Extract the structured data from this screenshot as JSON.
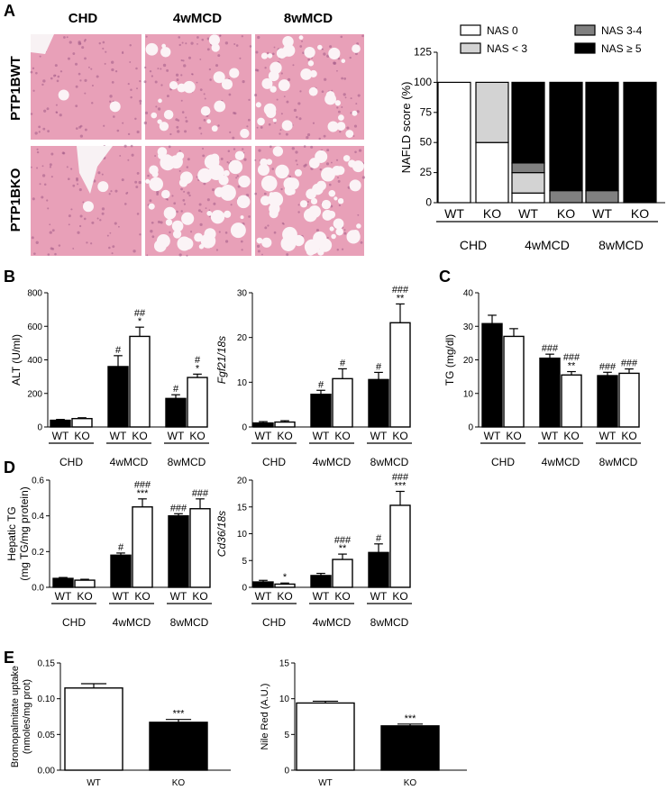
{
  "panel_letters": {
    "a": "A",
    "b": "B",
    "c": "C",
    "d": "D",
    "e": "E"
  },
  "histology": {
    "columns": [
      "CHD",
      "4wMCD",
      "8wMCD"
    ],
    "rows": [
      "PTP1BWT",
      "PTP1BKO"
    ]
  },
  "colors": {
    "wt": "#000000",
    "ko": "#ffffff",
    "nas_lt3": "#d3d3d3",
    "nas_34": "#808080",
    "tissue": "#e8a0b8"
  },
  "chart_data": [
    {
      "id": "nafld",
      "type": "bar",
      "stacked": true,
      "ylabel": "NAFLD score (%)",
      "ylim": [
        0,
        125
      ],
      "yticks": [
        0,
        25,
        50,
        75,
        100,
        125
      ],
      "categories": [
        "WT",
        "KO",
        "WT",
        "KO",
        "WT",
        "KO"
      ],
      "groups": [
        "CHD",
        "4wMCD",
        "8wMCD"
      ],
      "series": [
        {
          "name": "NAS 0",
          "values": [
            100,
            50,
            8,
            0,
            0,
            0
          ]
        },
        {
          "name": "NAS < 3",
          "values": [
            0,
            50,
            17,
            0,
            0,
            0
          ]
        },
        {
          "name": "NAS 3-4",
          "values": [
            0,
            0,
            8,
            10,
            10,
            0
          ]
        },
        {
          "name": "NAS ≥ 5",
          "values": [
            0,
            0,
            67,
            90,
            90,
            100
          ]
        }
      ]
    },
    {
      "id": "alt",
      "type": "bar",
      "ylabel": "ALT (U/ml)",
      "ylim": [
        0,
        800
      ],
      "yticks": [
        0,
        200,
        400,
        600,
        800
      ],
      "categories": [
        "WT",
        "KO",
        "WT",
        "KO",
        "WT",
        "KO"
      ],
      "groups": [
        "CHD",
        "4wMCD",
        "8wMCD"
      ],
      "values": [
        40,
        50,
        360,
        540,
        170,
        295
      ],
      "errors": [
        5,
        5,
        65,
        55,
        22,
        20
      ],
      "annotations": [
        "",
        "",
        "#",
        "##\n*",
        "#",
        "#\n*"
      ]
    },
    {
      "id": "fgf21",
      "type": "bar",
      "ylabel": "Fgf21/18s",
      "ylim": [
        0,
        30
      ],
      "yticks": [
        0,
        10,
        20,
        30
      ],
      "categories": [
        "WT",
        "KO",
        "WT",
        "KO",
        "WT",
        "KO"
      ],
      "groups": [
        "CHD",
        "4wMCD",
        "8wMCD"
      ],
      "values": [
        0.9,
        1.1,
        7.3,
        10.8,
        10.6,
        23.3
      ],
      "errors": [
        0.3,
        0.3,
        0.9,
        2.2,
        1.6,
        4.2
      ],
      "annotations": [
        "",
        "",
        "#",
        "#",
        "#",
        "###\n**"
      ]
    },
    {
      "id": "tg",
      "type": "bar",
      "ylabel": "TG (mg/dl)",
      "ylim": [
        0,
        40
      ],
      "yticks": [
        0,
        10,
        20,
        30,
        40
      ],
      "categories": [
        "WT",
        "KO",
        "WT",
        "KO",
        "WT",
        "KO"
      ],
      "groups": [
        "CHD",
        "4wMCD",
        "8wMCD"
      ],
      "values": [
        30.8,
        27,
        20.5,
        15.5,
        15.3,
        16
      ],
      "errors": [
        2.5,
        2.3,
        1.2,
        1.0,
        1.0,
        1.3
      ],
      "annotations": [
        "",
        "",
        "###",
        "###\n**",
        "###",
        "###"
      ]
    },
    {
      "id": "hepatic_tg",
      "type": "bar",
      "ylabel": "Hepatic TG",
      "ylabel2": "(mg TG/mg protein)",
      "ylim": [
        0,
        0.6
      ],
      "yticks": [
        0.0,
        0.2,
        0.4,
        0.6
      ],
      "categories": [
        "WT",
        "KO",
        "WT",
        "KO",
        "WT",
        "KO"
      ],
      "groups": [
        "CHD",
        "4wMCD",
        "8wMCD"
      ],
      "values": [
        0.05,
        0.04,
        0.18,
        0.45,
        0.4,
        0.44
      ],
      "errors": [
        0.005,
        0.005,
        0.012,
        0.045,
        0.012,
        0.055
      ],
      "annotations": [
        "",
        "",
        "#",
        "###\n***",
        "###",
        "###"
      ]
    },
    {
      "id": "cd36",
      "type": "bar",
      "ylabel": "Cd36/18s",
      "ylim": [
        0,
        20
      ],
      "yticks": [
        0,
        5,
        10,
        15,
        20
      ],
      "categories": [
        "WT",
        "KO",
        "WT",
        "KO",
        "WT",
        "KO"
      ],
      "groups": [
        "CHD",
        "4wMCD",
        "8wMCD"
      ],
      "values": [
        1.0,
        0.6,
        2.2,
        5.2,
        6.5,
        15.3
      ],
      "errors": [
        0.3,
        0.2,
        0.4,
        1.0,
        1.6,
        2.6
      ],
      "annotations": [
        "",
        "*",
        "",
        "###\n**",
        "#",
        "###\n***"
      ]
    },
    {
      "id": "bromopalmitate",
      "type": "bar",
      "ylabel": "Bromopalmitate uptake",
      "ylabel2": "(nmoles/mg prot)",
      "ylim": [
        0,
        0.15
      ],
      "yticks": [
        0.0,
        0.05,
        0.1,
        0.15
      ],
      "yticklabels": [
        "0.00",
        "0.05",
        "0.10",
        "0.15"
      ],
      "categories": [
        "WT",
        "KO"
      ],
      "values": [
        0.115,
        0.067
      ],
      "errors": [
        0.006,
        0.004
      ],
      "annotations": [
        "",
        "***"
      ]
    },
    {
      "id": "nile_red",
      "type": "bar",
      "ylabel": "Nile Red (A.U.)",
      "ylim": [
        0,
        15
      ],
      "yticks": [
        0,
        5,
        10,
        15
      ],
      "categories": [
        "WT",
        "KO"
      ],
      "values": [
        9.4,
        6.2
      ],
      "errors": [
        0.25,
        0.25
      ],
      "annotations": [
        "",
        "***"
      ]
    }
  ]
}
